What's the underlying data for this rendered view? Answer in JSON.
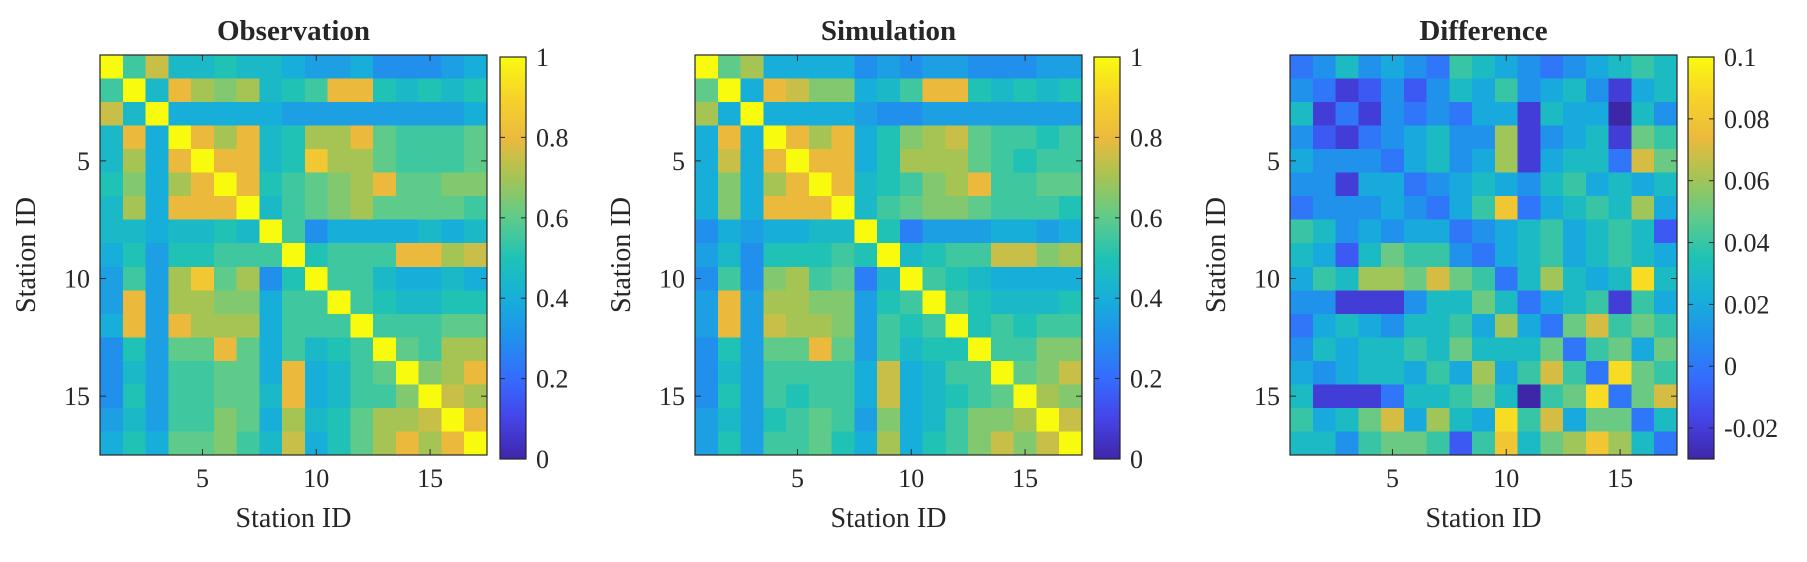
{
  "chart_data": [
    {
      "type": "heatmap",
      "title": "Observation",
      "xlabel": "Station ID",
      "ylabel": "Station ID",
      "n": 17,
      "xticks": [
        5,
        10,
        15
      ],
      "yticks": [
        5,
        10,
        15
      ],
      "clim": [
        0,
        1
      ],
      "colorbar_ticks": [
        {
          "value": 0,
          "label": "0"
        },
        {
          "value": 0.2,
          "label": "0.2"
        },
        {
          "value": 0.4,
          "label": "0.4"
        },
        {
          "value": 0.6,
          "label": "0.6"
        },
        {
          "value": 0.8,
          "label": "0.8"
        },
        {
          "value": 1,
          "label": "1"
        }
      ],
      "values": [
        [
          1.0,
          0.55,
          0.75,
          0.45,
          0.45,
          0.5,
          0.45,
          0.45,
          0.4,
          0.35,
          0.35,
          0.4,
          0.3,
          0.3,
          0.3,
          0.35,
          0.4
        ],
        [
          0.55,
          1.0,
          0.45,
          0.8,
          0.7,
          0.65,
          0.7,
          0.45,
          0.5,
          0.55,
          0.8,
          0.8,
          0.5,
          0.45,
          0.5,
          0.45,
          0.5
        ],
        [
          0.75,
          0.45,
          1.0,
          0.4,
          0.4,
          0.4,
          0.4,
          0.4,
          0.35,
          0.35,
          0.35,
          0.35,
          0.35,
          0.35,
          0.35,
          0.35,
          0.4
        ],
        [
          0.45,
          0.8,
          0.4,
          1.0,
          0.8,
          0.7,
          0.8,
          0.45,
          0.5,
          0.7,
          0.7,
          0.8,
          0.6,
          0.55,
          0.55,
          0.55,
          0.6
        ],
        [
          0.45,
          0.7,
          0.4,
          0.8,
          1.0,
          0.8,
          0.8,
          0.45,
          0.5,
          0.85,
          0.7,
          0.7,
          0.6,
          0.55,
          0.55,
          0.55,
          0.6
        ],
        [
          0.5,
          0.65,
          0.4,
          0.7,
          0.8,
          1.0,
          0.8,
          0.5,
          0.55,
          0.6,
          0.65,
          0.7,
          0.8,
          0.6,
          0.6,
          0.65,
          0.65
        ],
        [
          0.45,
          0.7,
          0.4,
          0.8,
          0.8,
          0.8,
          1.0,
          0.45,
          0.55,
          0.6,
          0.65,
          0.7,
          0.6,
          0.6,
          0.6,
          0.6,
          0.55
        ],
        [
          0.45,
          0.45,
          0.4,
          0.45,
          0.45,
          0.5,
          0.45,
          1.0,
          0.55,
          0.3,
          0.4,
          0.4,
          0.4,
          0.4,
          0.45,
          0.4,
          0.45
        ],
        [
          0.4,
          0.5,
          0.35,
          0.5,
          0.5,
          0.55,
          0.55,
          0.55,
          1.0,
          0.5,
          0.55,
          0.55,
          0.55,
          0.8,
          0.8,
          0.7,
          0.75
        ],
        [
          0.35,
          0.55,
          0.35,
          0.7,
          0.85,
          0.6,
          0.7,
          0.3,
          0.5,
          1.0,
          0.55,
          0.55,
          0.45,
          0.4,
          0.4,
          0.45,
          0.4
        ],
        [
          0.35,
          0.8,
          0.35,
          0.7,
          0.7,
          0.65,
          0.65,
          0.4,
          0.55,
          0.55,
          1.0,
          0.55,
          0.5,
          0.45,
          0.45,
          0.5,
          0.5
        ],
        [
          0.4,
          0.8,
          0.35,
          0.8,
          0.7,
          0.7,
          0.7,
          0.4,
          0.55,
          0.55,
          0.55,
          1.0,
          0.55,
          0.55,
          0.55,
          0.6,
          0.6
        ],
        [
          0.3,
          0.5,
          0.35,
          0.6,
          0.6,
          0.8,
          0.6,
          0.4,
          0.55,
          0.45,
          0.5,
          0.55,
          1.0,
          0.6,
          0.55,
          0.7,
          0.7
        ],
        [
          0.3,
          0.45,
          0.35,
          0.55,
          0.55,
          0.6,
          0.6,
          0.4,
          0.8,
          0.4,
          0.45,
          0.55,
          0.6,
          1.0,
          0.65,
          0.7,
          0.8
        ],
        [
          0.3,
          0.5,
          0.35,
          0.55,
          0.55,
          0.6,
          0.6,
          0.45,
          0.8,
          0.4,
          0.45,
          0.55,
          0.55,
          0.65,
          1.0,
          0.75,
          0.7
        ],
        [
          0.35,
          0.45,
          0.35,
          0.55,
          0.55,
          0.65,
          0.6,
          0.4,
          0.7,
          0.45,
          0.5,
          0.6,
          0.7,
          0.7,
          0.75,
          1.0,
          0.8
        ],
        [
          0.4,
          0.5,
          0.4,
          0.6,
          0.6,
          0.65,
          0.55,
          0.45,
          0.75,
          0.4,
          0.5,
          0.6,
          0.7,
          0.8,
          0.7,
          0.8,
          1.0
        ]
      ]
    },
    {
      "type": "heatmap",
      "title": "Simulation",
      "xlabel": "Station ID",
      "ylabel": "Station ID",
      "n": 17,
      "xticks": [
        5,
        10,
        15
      ],
      "yticks": [
        5,
        10,
        15
      ],
      "clim": [
        0,
        1
      ],
      "colorbar_ticks": [
        {
          "value": 0,
          "label": "0"
        },
        {
          "value": 0.2,
          "label": "0.2"
        },
        {
          "value": 0.4,
          "label": "0.4"
        },
        {
          "value": 0.6,
          "label": "0.6"
        },
        {
          "value": 0.8,
          "label": "0.8"
        },
        {
          "value": 1,
          "label": "1"
        }
      ],
      "values": [
        [
          1.0,
          0.6,
          0.7,
          0.4,
          0.4,
          0.4,
          0.4,
          0.3,
          0.35,
          0.3,
          0.35,
          0.35,
          0.3,
          0.3,
          0.3,
          0.35,
          0.35
        ],
        [
          0.6,
          1.0,
          0.4,
          0.8,
          0.75,
          0.65,
          0.65,
          0.4,
          0.45,
          0.55,
          0.8,
          0.8,
          0.5,
          0.45,
          0.5,
          0.45,
          0.5
        ],
        [
          0.7,
          0.4,
          1.0,
          0.4,
          0.4,
          0.4,
          0.4,
          0.35,
          0.3,
          0.3,
          0.35,
          0.35,
          0.35,
          0.35,
          0.35,
          0.35,
          0.35
        ],
        [
          0.4,
          0.8,
          0.4,
          1.0,
          0.8,
          0.7,
          0.8,
          0.4,
          0.5,
          0.65,
          0.7,
          0.75,
          0.6,
          0.55,
          0.55,
          0.5,
          0.55
        ],
        [
          0.4,
          0.75,
          0.4,
          0.8,
          1.0,
          0.8,
          0.8,
          0.4,
          0.5,
          0.7,
          0.7,
          0.7,
          0.6,
          0.55,
          0.5,
          0.55,
          0.55
        ],
        [
          0.4,
          0.65,
          0.4,
          0.7,
          0.8,
          1.0,
          0.8,
          0.45,
          0.5,
          0.55,
          0.65,
          0.7,
          0.8,
          0.55,
          0.55,
          0.6,
          0.6
        ],
        [
          0.4,
          0.65,
          0.4,
          0.8,
          0.8,
          0.8,
          1.0,
          0.45,
          0.55,
          0.6,
          0.65,
          0.65,
          0.6,
          0.55,
          0.55,
          0.55,
          0.5
        ],
        [
          0.3,
          0.4,
          0.35,
          0.4,
          0.4,
          0.45,
          0.45,
          1.0,
          0.5,
          0.25,
          0.35,
          0.35,
          0.35,
          0.4,
          0.4,
          0.35,
          0.4
        ],
        [
          0.35,
          0.45,
          0.3,
          0.5,
          0.5,
          0.5,
          0.55,
          0.5,
          1.0,
          0.45,
          0.5,
          0.55,
          0.55,
          0.75,
          0.75,
          0.65,
          0.7
        ],
        [
          0.3,
          0.55,
          0.3,
          0.65,
          0.7,
          0.55,
          0.6,
          0.25,
          0.45,
          1.0,
          0.55,
          0.5,
          0.45,
          0.4,
          0.4,
          0.4,
          0.4
        ],
        [
          0.35,
          0.8,
          0.35,
          0.7,
          0.7,
          0.65,
          0.65,
          0.35,
          0.5,
          0.55,
          1.0,
          0.55,
          0.5,
          0.45,
          0.45,
          0.45,
          0.5
        ],
        [
          0.35,
          0.8,
          0.35,
          0.75,
          0.7,
          0.7,
          0.65,
          0.35,
          0.55,
          0.5,
          0.55,
          1.0,
          0.5,
          0.55,
          0.5,
          0.55,
          0.55
        ],
        [
          0.3,
          0.5,
          0.35,
          0.6,
          0.6,
          0.8,
          0.6,
          0.35,
          0.55,
          0.45,
          0.5,
          0.5,
          1.0,
          0.55,
          0.55,
          0.65,
          0.65
        ],
        [
          0.3,
          0.45,
          0.35,
          0.55,
          0.55,
          0.55,
          0.55,
          0.4,
          0.75,
          0.4,
          0.45,
          0.55,
          0.55,
          1.0,
          0.6,
          0.65,
          0.75
        ],
        [
          0.3,
          0.5,
          0.35,
          0.55,
          0.5,
          0.55,
          0.55,
          0.4,
          0.75,
          0.4,
          0.45,
          0.5,
          0.55,
          0.6,
          1.0,
          0.7,
          0.65
        ],
        [
          0.35,
          0.45,
          0.35,
          0.5,
          0.55,
          0.6,
          0.55,
          0.35,
          0.65,
          0.4,
          0.45,
          0.55,
          0.65,
          0.65,
          0.7,
          1.0,
          0.75
        ],
        [
          0.35,
          0.5,
          0.35,
          0.55,
          0.55,
          0.6,
          0.5,
          0.4,
          0.7,
          0.4,
          0.5,
          0.55,
          0.65,
          0.75,
          0.65,
          0.75,
          1.0
        ]
      ]
    },
    {
      "type": "heatmap",
      "title": "Difference",
      "xlabel": "Station ID",
      "ylabel": "Station ID",
      "n": 17,
      "xticks": [
        5,
        10,
        15
      ],
      "yticks": [
        5,
        10,
        15
      ],
      "clim": [
        -0.03,
        0.1
      ],
      "colorbar_ticks": [
        {
          "value": -0.02,
          "label": "-0.02"
        },
        {
          "value": 0,
          "label": "0"
        },
        {
          "value": 0.02,
          "label": "0.02"
        },
        {
          "value": 0.04,
          "label": "0.04"
        },
        {
          "value": 0.06,
          "label": "0.06"
        },
        {
          "value": 0.08,
          "label": "0.08"
        },
        {
          "value": 0.1,
          "label": "0.1"
        }
      ],
      "values": [
        [
          0.0,
          0.01,
          0.03,
          0.01,
          0.02,
          0.01,
          0.0,
          0.04,
          0.03,
          0.02,
          0.01,
          0.0,
          0.01,
          0.02,
          0.03,
          0.04,
          0.03
        ],
        [
          0.01,
          0.0,
          -0.02,
          -0.01,
          0.01,
          -0.01,
          0.01,
          0.03,
          0.02,
          0.04,
          0.01,
          0.02,
          0.03,
          0.01,
          -0.02,
          0.02,
          0.03
        ],
        [
          0.03,
          -0.02,
          0.0,
          -0.02,
          0.01,
          0.0,
          0.01,
          0.0,
          0.02,
          0.02,
          -0.02,
          0.03,
          0.02,
          0.02,
          -0.03,
          0.03,
          0.01
        ],
        [
          0.01,
          -0.01,
          -0.02,
          0.0,
          0.01,
          0.02,
          0.03,
          0.01,
          0.01,
          0.06,
          -0.02,
          0.01,
          0.02,
          0.03,
          -0.02,
          0.05,
          0.04
        ],
        [
          0.02,
          0.01,
          0.01,
          0.01,
          0.0,
          0.02,
          0.03,
          0.01,
          0.02,
          0.06,
          -0.02,
          0.02,
          0.03,
          0.03,
          0.0,
          0.07,
          0.05
        ],
        [
          0.01,
          0.01,
          -0.02,
          0.02,
          0.02,
          0.0,
          0.01,
          0.02,
          0.03,
          0.02,
          0.01,
          0.03,
          0.04,
          0.02,
          0.03,
          0.02,
          0.03
        ],
        [
          0.0,
          0.01,
          0.01,
          0.01,
          0.02,
          0.01,
          0.0,
          0.02,
          0.04,
          0.08,
          0.0,
          0.02,
          0.03,
          0.04,
          0.03,
          0.06,
          0.02
        ],
        [
          0.04,
          0.03,
          0.01,
          0.02,
          0.01,
          0.02,
          0.02,
          0.0,
          0.01,
          0.02,
          0.03,
          0.04,
          0.02,
          0.03,
          0.04,
          0.03,
          -0.01
        ],
        [
          0.03,
          0.02,
          -0.01,
          0.03,
          0.05,
          0.04,
          0.04,
          0.01,
          0.0,
          0.02,
          0.03,
          0.04,
          0.02,
          0.03,
          0.04,
          0.03,
          0.02
        ],
        [
          0.02,
          0.04,
          0.03,
          0.06,
          0.06,
          0.05,
          0.07,
          0.05,
          0.04,
          0.0,
          0.03,
          0.06,
          0.03,
          0.02,
          0.03,
          0.09,
          0.03
        ],
        [
          0.01,
          0.01,
          -0.02,
          -0.02,
          -0.02,
          0.01,
          0.03,
          0.03,
          0.05,
          0.03,
          0.0,
          0.02,
          0.03,
          0.04,
          -0.02,
          0.04,
          0.02
        ],
        [
          0.0,
          0.02,
          0.03,
          0.02,
          0.01,
          0.03,
          0.03,
          0.04,
          0.02,
          0.06,
          0.02,
          0.0,
          0.05,
          0.07,
          0.04,
          0.05,
          0.04
        ],
        [
          0.01,
          0.03,
          0.02,
          0.03,
          0.03,
          0.04,
          0.03,
          0.05,
          0.03,
          0.03,
          0.03,
          0.05,
          0.0,
          0.04,
          0.05,
          0.02,
          0.05
        ],
        [
          0.02,
          0.01,
          0.02,
          0.03,
          0.03,
          0.02,
          0.04,
          0.02,
          0.06,
          0.02,
          0.04,
          0.07,
          0.04,
          0.0,
          0.09,
          0.05,
          0.04
        ],
        [
          0.03,
          -0.02,
          -0.02,
          -0.02,
          0.0,
          0.03,
          0.03,
          0.04,
          0.05,
          0.03,
          -0.03,
          0.04,
          0.05,
          0.09,
          0.0,
          0.05,
          0.07
        ],
        [
          0.04,
          0.02,
          0.03,
          0.05,
          0.07,
          0.02,
          0.06,
          0.03,
          0.02,
          0.09,
          0.04,
          0.07,
          0.02,
          0.05,
          0.05,
          0.0,
          0.03
        ],
        [
          0.03,
          0.03,
          0.01,
          0.04,
          0.05,
          0.05,
          0.04,
          -0.01,
          0.04,
          0.08,
          0.03,
          0.05,
          0.06,
          0.08,
          0.06,
          0.03,
          0.0
        ]
      ]
    }
  ]
}
